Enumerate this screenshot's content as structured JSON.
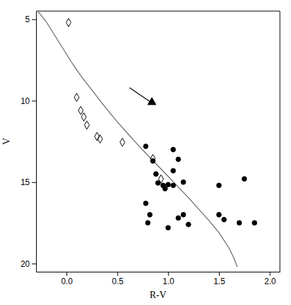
{
  "chart_data": {
    "type": "scatter",
    "xlabel": "R-V",
    "ylabel": "V",
    "xlim": [
      -0.3,
      2.1
    ],
    "ylim": [
      20.5,
      4.5
    ],
    "xticks": [
      {
        "value": 0,
        "label": "0.0"
      },
      0.5,
      {
        "value": 1.0,
        "label": "1.0"
      },
      1.5,
      {
        "value": 2.0,
        "label": "2.0"
      }
    ],
    "yticks": [
      5,
      10,
      15,
      20
    ],
    "series": [
      {
        "type": "line",
        "color": "#666666",
        "x": [
          -0.28,
          -0.25,
          -0.2,
          -0.15,
          -0.1,
          -0.05,
          0.0,
          0.05,
          0.1,
          0.15,
          0.2,
          0.25,
          0.3,
          0.35,
          0.4,
          0.5,
          0.6,
          0.7,
          0.8,
          0.9,
          1.0,
          1.1,
          1.2,
          1.3,
          1.4,
          1.5,
          1.6,
          1.65,
          1.68
        ],
        "values": [
          4.55,
          4.75,
          5.15,
          5.65,
          6.15,
          6.65,
          7.15,
          7.65,
          8.1,
          8.55,
          8.95,
          9.35,
          9.75,
          10.15,
          10.55,
          11.3,
          12.0,
          12.7,
          13.35,
          14.0,
          14.65,
          15.3,
          15.95,
          16.65,
          17.35,
          18.1,
          19.05,
          19.7,
          20.2
        ]
      },
      {
        "type": "scatter",
        "marker": "diamond-open",
        "color": "#000000",
        "x": [
          0.02,
          0.1,
          0.14,
          0.17,
          0.2,
          0.3,
          0.33,
          0.55,
          0.85,
          0.93
        ],
        "values": [
          5.2,
          9.8,
          10.6,
          11.0,
          11.5,
          12.2,
          12.35,
          12.55,
          13.55,
          14.8
        ]
      },
      {
        "type": "scatter",
        "marker": "circle",
        "color": "#000000",
        "x": [
          0.78,
          0.78,
          0.8,
          0.82,
          0.85,
          0.88,
          0.9,
          0.95,
          0.97,
          1.0,
          1.0,
          1.05,
          1.05,
          1.05,
          1.1,
          1.1,
          1.15,
          1.15,
          1.2,
          1.5,
          1.5,
          1.55,
          1.7,
          1.75,
          1.85
        ],
        "values": [
          12.8,
          16.3,
          17.5,
          17.0,
          13.7,
          14.5,
          15.05,
          15.2,
          15.4,
          15.15,
          17.8,
          13.0,
          14.3,
          15.2,
          13.6,
          17.2,
          15.0,
          17.0,
          17.6,
          15.2,
          17.0,
          17.3,
          17.5,
          14.8,
          17.5
        ]
      },
      {
        "type": "line",
        "color": "#000000",
        "x": [
          0.62,
          0.82
        ],
        "values": [
          9.2,
          10.05
        ]
      },
      {
        "type": "scatter",
        "marker": "triangle",
        "color": "#000000",
        "x": [
          0.84
        ],
        "values": [
          10.1
        ]
      }
    ]
  }
}
